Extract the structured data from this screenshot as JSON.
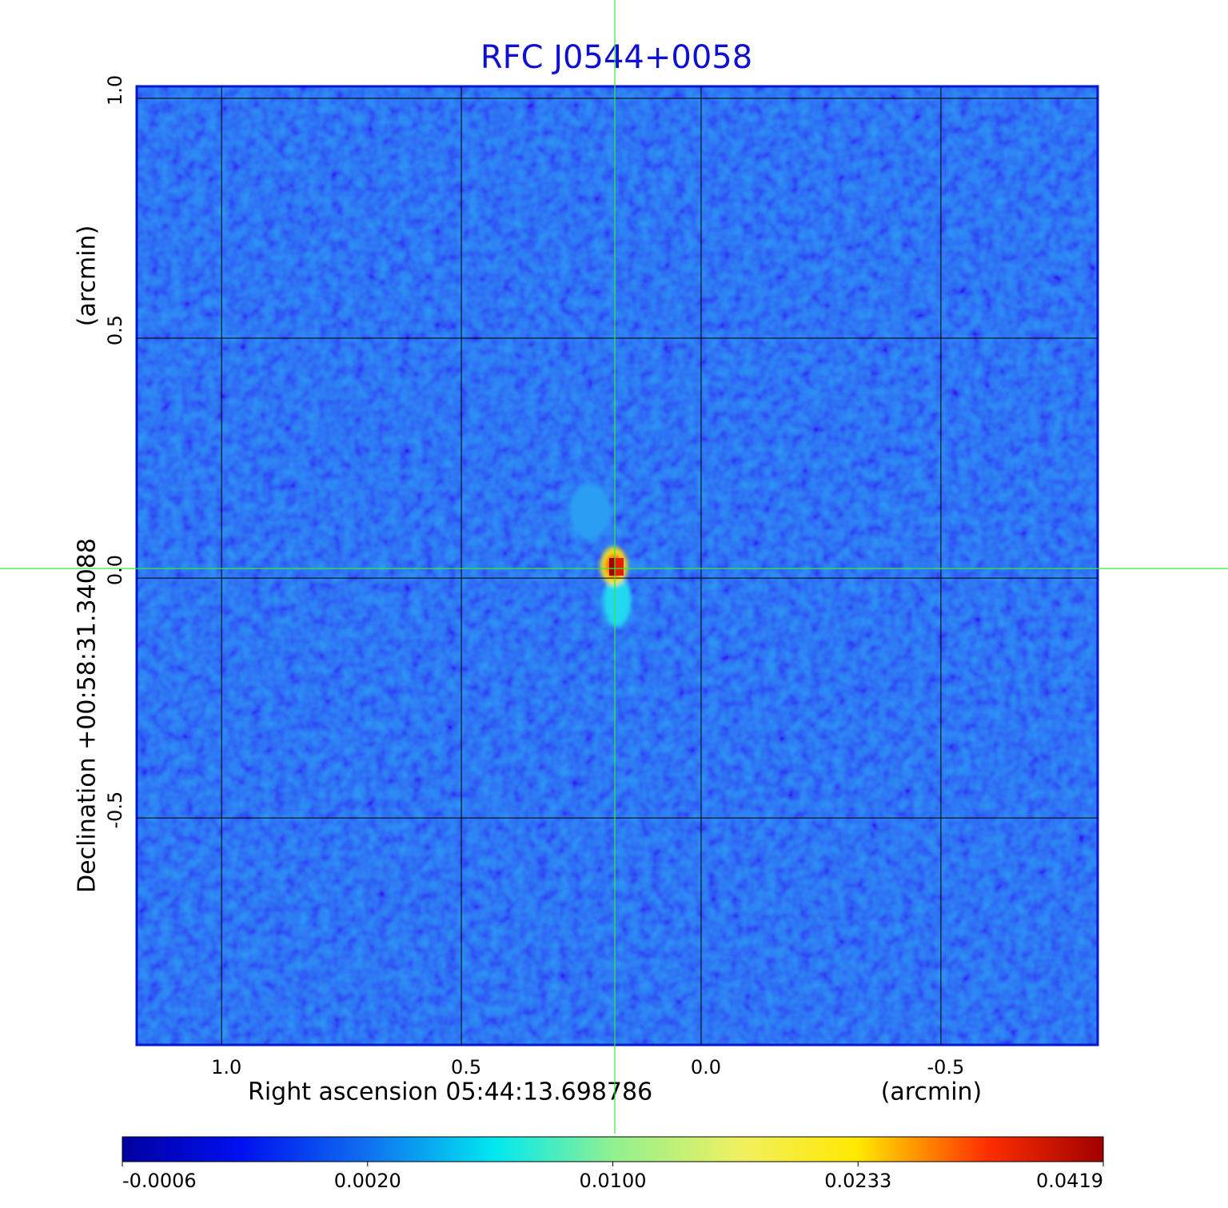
{
  "chart_data": {
    "type": "image",
    "title": "RFC J0544+0058",
    "xlabel": "Right ascension  05:44:13.698786",
    "xunit": "(arcmin)",
    "ylabel": "Declination  +00:58:31.34088",
    "yunit": "(arcmin)",
    "xlim": [
      1.177,
      -0.827
    ],
    "ylim": [
      -0.973,
      1.025
    ],
    "xticks": [
      {
        "value": 1.0,
        "label": "1.0"
      },
      0.5,
      {
        "value": 0.0,
        "label": "0.0"
      },
      -0.5
    ],
    "yticks": [
      {
        "value": 1.0,
        "label": "1.0"
      },
      0.5,
      {
        "value": 0.0,
        "label": "0.0"
      },
      -0.5
    ],
    "grid": true,
    "crosshair": {
      "x": 0.18,
      "y": 0.02,
      "color": "#33ee33"
    },
    "colorbar": {
      "lim": [
        -0.0006,
        0.0419
      ],
      "ticks": [
        -0.0006,
        {
          "value": 0.002,
          "label": "0.0020"
        },
        {
          "value": 0.01,
          "label": "0.0100"
        },
        0.0233,
        0.0419
      ]
    }
  }
}
